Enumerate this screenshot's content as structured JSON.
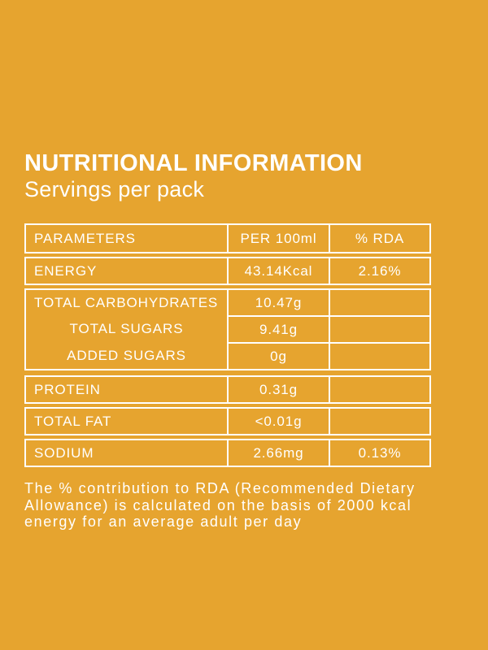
{
  "colors": {
    "background": "#E6A42F",
    "foreground": "#FFFFFF"
  },
  "label": {
    "title": "NUTRITIONAL INFORMATION",
    "subtitle": "Servings per pack"
  },
  "table": {
    "header": {
      "parameters": "PARAMETERS",
      "per_100ml": "PER 100ml",
      "rda": "% RDA"
    },
    "rows": [
      {
        "parameter": "ENERGY",
        "per_100ml": "43.14Kcal",
        "rda": "2.16%"
      },
      {
        "parameter": "TOTAL CARBOHYDRATES",
        "per_100ml": "10.47g",
        "rda": ""
      },
      {
        "parameter": "TOTAL SUGARS",
        "per_100ml": "9.41g",
        "rda": ""
      },
      {
        "parameter": "ADDED SUGARS",
        "per_100ml": "0g",
        "rda": ""
      },
      {
        "parameter": "PROTEIN",
        "per_100ml": "0.31g",
        "rda": ""
      },
      {
        "parameter": "TOTAL FAT",
        "per_100ml": "<0.01g",
        "rda": ""
      },
      {
        "parameter": "SODIUM",
        "per_100ml": "2.66mg",
        "rda": "0.13%"
      }
    ]
  },
  "footnote": {
    "lines": [
      "The % contribution to RDA (Recommended Dietary",
      "Allowance) is calculated on the basis of 2000 kcal",
      "energy for an average adult per day"
    ]
  }
}
